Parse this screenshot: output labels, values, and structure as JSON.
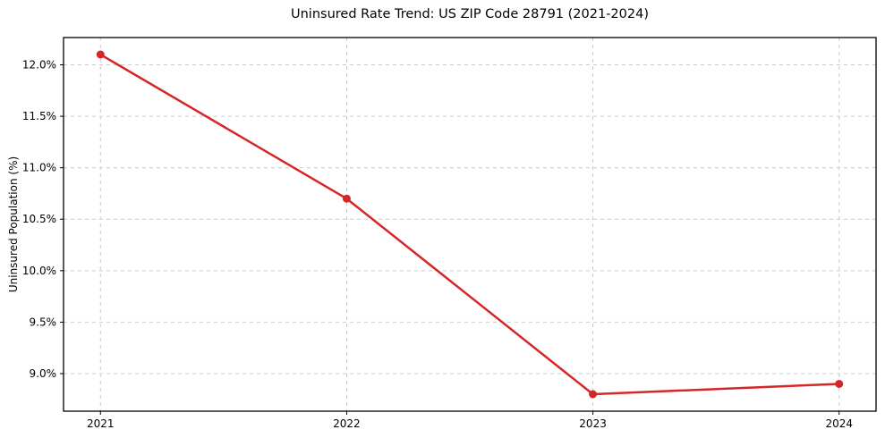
{
  "chart_data": {
    "type": "line",
    "title": "Uninsured Rate Trend: US ZIP Code 28791 (2021-2024)",
    "xlabel": "",
    "ylabel": "Uninsured Population (%)",
    "x": [
      2021,
      2022,
      2023,
      2024
    ],
    "values": [
      12.1,
      10.7,
      8.8,
      8.9
    ],
    "xtick_labels": [
      "2021",
      "2022",
      "2023",
      "2024"
    ],
    "ytick_values": [
      9.0,
      9.5,
      10.0,
      10.5,
      11.0,
      11.5,
      12.0
    ],
    "ytick_labels": [
      "9.0%",
      "9.5%",
      "10.0%",
      "10.5%",
      "11.0%",
      "11.5%",
      "12.0%"
    ],
    "xlim": [
      2020.85,
      2024.15
    ],
    "ylim": [
      8.635,
      12.265
    ],
    "grid": true,
    "grid_style": "dashed",
    "legend_position": "none",
    "marker": "circle",
    "line_color": "#d62728",
    "grid_color": "#cccccc",
    "axis_color": "#000000",
    "background_color": "#ffffff"
  }
}
